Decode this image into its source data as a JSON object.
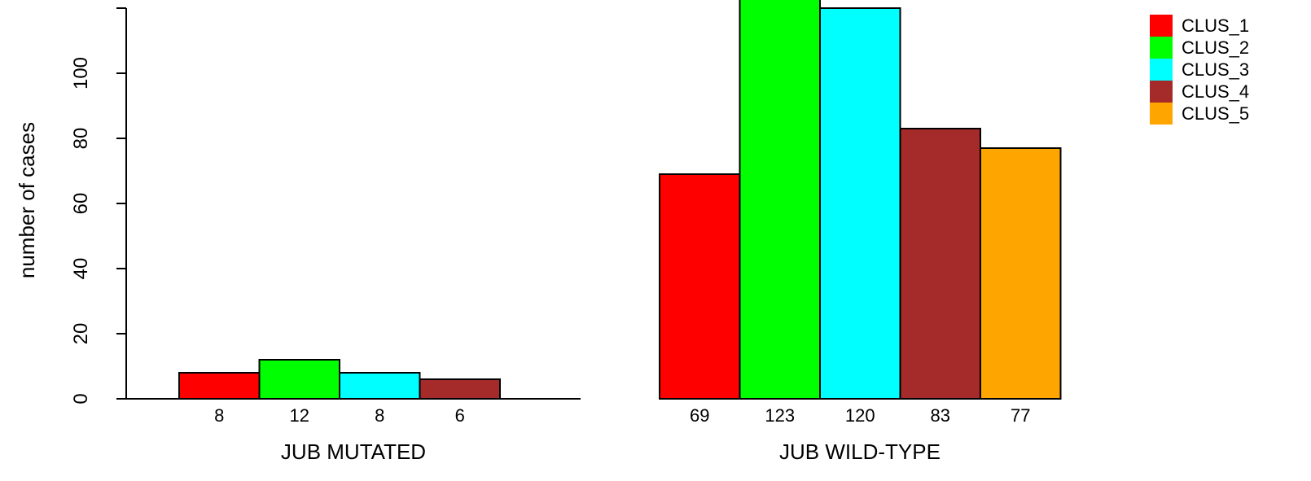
{
  "chart_data": {
    "type": "bar",
    "ylabel": "number of cases",
    "ylim": [
      0,
      125
    ],
    "yticks": [
      0,
      20,
      40,
      60,
      80,
      100
    ],
    "grid": false,
    "legend_position": "top-right",
    "series": [
      {
        "name": "CLUS_1",
        "color": "#ff0000"
      },
      {
        "name": "CLUS_2",
        "color": "#00ff00"
      },
      {
        "name": "CLUS_3",
        "color": "#00ffff"
      },
      {
        "name": "CLUS_4",
        "color": "#a52a2a"
      },
      {
        "name": "CLUS_5",
        "color": "#ffa500"
      }
    ],
    "groups": [
      {
        "label": "JUB MUTATED",
        "values": [
          8,
          12,
          8,
          6,
          0
        ],
        "labels": [
          "8",
          "12",
          "8",
          "6",
          ""
        ]
      },
      {
        "label": "JUB WILD-TYPE",
        "values": [
          69,
          123,
          120,
          83,
          77
        ],
        "labels": [
          "69",
          "123",
          "120",
          "83",
          "77"
        ]
      }
    ]
  }
}
